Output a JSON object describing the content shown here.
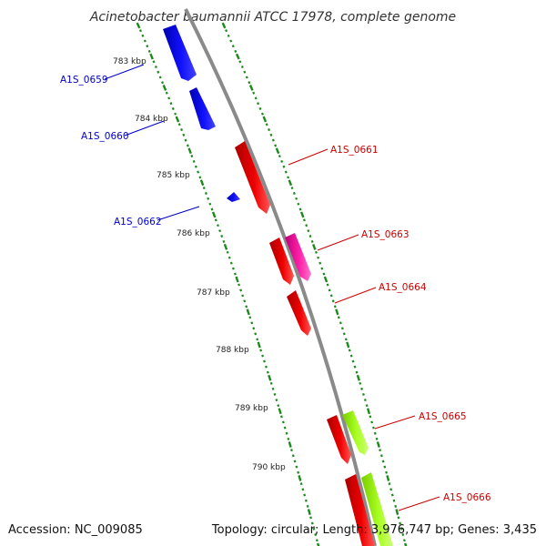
{
  "title": "Acinetobacter baumannii ATCC 17978, complete genome",
  "footer": {
    "accession": "Accession: NC_009085",
    "summary": "Topology: circular; Length: 3,976,747 bp; Genes: 3,435"
  },
  "colors": {
    "backbone": "#8a8a8a",
    "tick": "#1a8a1a",
    "reverse_strand": "#0000ee",
    "forward_strand": "#ee0000",
    "pink_feature": "#ff1fa8",
    "lime_feature": "#aaff22"
  },
  "kbp_markers": [
    {
      "kbp": 783,
      "label": "783 kbp"
    },
    {
      "kbp": 784,
      "label": "784 kbp"
    },
    {
      "kbp": 785,
      "label": "785 kbp"
    },
    {
      "kbp": 786,
      "label": "786 kbp"
    },
    {
      "kbp": 787,
      "label": "787 kbp"
    },
    {
      "kbp": 788,
      "label": "788 kbp"
    },
    {
      "kbp": 789,
      "label": "789 kbp"
    },
    {
      "kbp": 790,
      "label": "790 kbp"
    }
  ],
  "gene_labels": [
    {
      "id": "A1S_0659",
      "strand": "reverse"
    },
    {
      "id": "A1S_0660",
      "strand": "reverse"
    },
    {
      "id": "A1S_0662",
      "strand": "reverse"
    },
    {
      "id": "A1S_0661",
      "strand": "forward"
    },
    {
      "id": "A1S_0663",
      "strand": "forward"
    },
    {
      "id": "A1S_0664",
      "strand": "forward"
    },
    {
      "id": "A1S_0665",
      "strand": "forward"
    },
    {
      "id": "A1S_0666",
      "strand": "forward"
    }
  ]
}
